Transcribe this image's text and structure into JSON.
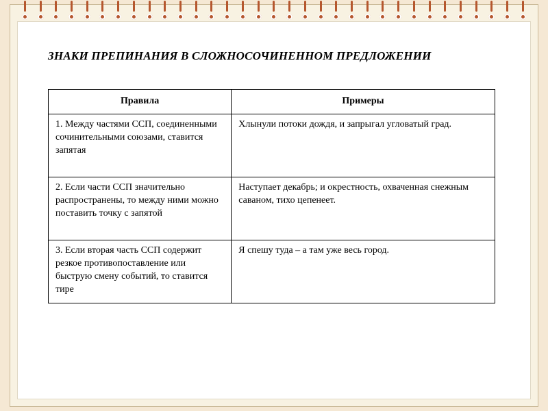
{
  "title": "ЗНАКИ ПРЕПИНАНИЯ В СЛОЖНОСОЧИНЕННОМ ПРЕДЛОЖЕНИИ",
  "binding": {
    "ring_count": 33
  },
  "table": {
    "headers": {
      "rules": "Правила",
      "examples": "Примеры"
    },
    "rows": [
      {
        "rule": "1. Между частями ССП, соединенными сочинительными союзами, ставится запятая",
        "example": "Хлынули потоки дождя, и запрыгал угловатый град."
      },
      {
        "rule": "2. Если части ССП значительно распространены, то между ними можно поставить точку с запятой",
        "example": "Наступает декабрь; и окрестность, охваченная снежным саваном, тихо цепенеет."
      },
      {
        "rule": "3. Если вторая часть ССП содержит резкое противопоставление или быструю смену событий, то ставится тире",
        "example": "Я спешу туда – а там уже весь город."
      }
    ]
  }
}
